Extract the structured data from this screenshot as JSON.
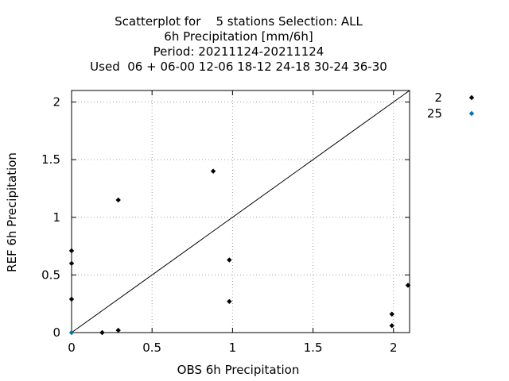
{
  "chart_data": {
    "type": "scatter",
    "title_lines": [
      "Scatterplot for    5 stations Selection: ALL",
      "6h Precipitation [mm/6h]",
      "Period: 20211124-20211124",
      "Used  06 + 06-00 12-06 18-12 24-18 30-24 36-30"
    ],
    "xlabel": "OBS 6h Precipitation",
    "ylabel": "REF 6h Precipitation",
    "xlim": [
      0,
      2.1
    ],
    "ylim": [
      0,
      2.1
    ],
    "x_ticks": [
      0,
      0.5,
      1,
      1.5,
      2
    ],
    "x_tick_labels": [
      "0",
      "0.5",
      "1",
      "1.5",
      "2"
    ],
    "y_ticks": [
      0,
      0.5,
      1,
      1.5,
      2
    ],
    "y_tick_labels": [
      "0",
      "0.5",
      "1",
      "1.5",
      "2"
    ],
    "grid": true,
    "diagonal": true,
    "legend_position": "outside-top-right",
    "series": [
      {
        "name": "2",
        "color": "#000000",
        "marker": "diamond",
        "points": [
          {
            "x": 0,
            "y": 0.71
          },
          {
            "x": 0,
            "y": 0.6
          },
          {
            "x": 0,
            "y": 0.29
          },
          {
            "x": 0.19,
            "y": 0
          },
          {
            "x": 0.29,
            "y": 1.15
          },
          {
            "x": 0.29,
            "y": 0.02
          },
          {
            "x": 0.88,
            "y": 1.4
          },
          {
            "x": 0.98,
            "y": 0.63
          },
          {
            "x": 0.98,
            "y": 0.27
          },
          {
            "x": 1.99,
            "y": 0.16
          },
          {
            "x": 1.99,
            "y": 0.06
          },
          {
            "x": 2.09,
            "y": 0.41
          }
        ]
      },
      {
        "name": "25",
        "color": "#0072b2",
        "marker": "diamond",
        "points": [
          {
            "x": 0,
            "y": 0
          }
        ]
      }
    ]
  }
}
